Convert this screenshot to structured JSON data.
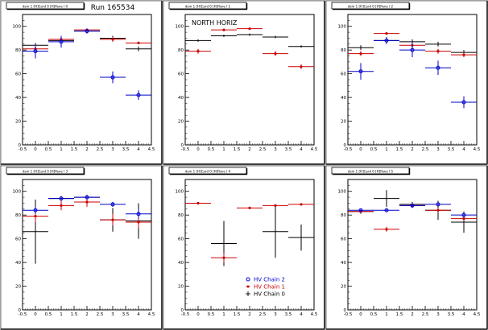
{
  "run_label": "Run 165534",
  "chart_data": [
    {
      "type": "scatter",
      "title": "dsm 1 [H]Card 0 [H]Pane l 0",
      "annotation": "",
      "xlim": [
        -0.5,
        4.5
      ],
      "ylim": [
        0,
        110
      ],
      "xticks": [
        "-0.5",
        "0",
        "0.5",
        "1",
        "1.5",
        "2",
        "2.5",
        "3",
        "3.5",
        "4",
        "4.5"
      ],
      "yticks": [
        "0",
        "20",
        "40",
        "60",
        "80",
        "100"
      ],
      "series": [
        {
          "color": "#000000",
          "marker": "cross",
          "x": [
            0,
            1,
            2,
            3,
            4
          ],
          "y": [
            84,
            88,
            96,
            90,
            81
          ],
          "yerr": [
            2,
            2,
            2,
            2,
            2
          ]
        },
        {
          "color": "#cc0000",
          "marker": "star",
          "x": [
            0,
            1,
            2,
            3,
            4
          ],
          "y": [
            81,
            89,
            97,
            89,
            86
          ],
          "yerr": [
            2,
            2,
            1,
            2,
            1
          ]
        },
        {
          "color": "#0000cc",
          "marker": "circle",
          "x": [
            0,
            1,
            2,
            3,
            4
          ],
          "y": [
            79,
            87,
            96,
            57,
            42
          ],
          "yerr": [
            6,
            5,
            2,
            5,
            4
          ]
        }
      ]
    },
    {
      "type": "scatter",
      "title": "dsm 1 [H]Card 0 [H]Pane l 1",
      "annotation": "NORTH HORIZ",
      "xlim": [
        -0.5,
        4.5
      ],
      "ylim": [
        0,
        110
      ],
      "xticks": [
        "-0.5",
        "0",
        "0.5",
        "1",
        "1.5",
        "2",
        "2.5",
        "3",
        "3.5",
        "4",
        "4.5"
      ],
      "yticks": [
        "0",
        "20",
        "40",
        "60",
        "80",
        "100"
      ],
      "series": [
        {
          "color": "#000000",
          "marker": "cross",
          "x": [
            0,
            1,
            2,
            3,
            4
          ],
          "y": [
            88,
            92,
            93,
            91,
            83
          ],
          "yerr": [
            1,
            1,
            1,
            1,
            1
          ]
        },
        {
          "color": "#cc0000",
          "marker": "star",
          "x": [
            0,
            1,
            2,
            3,
            4
          ],
          "y": [
            79,
            97,
            98,
            77,
            66
          ],
          "yerr": [
            2,
            1,
            1,
            2,
            2
          ]
        }
      ]
    },
    {
      "type": "scatter",
      "title": "dsm 1 [H]Card 0 [H]Pane l 2",
      "annotation": "",
      "xlim": [
        -0.5,
        4.5
      ],
      "ylim": [
        0,
        110
      ],
      "xticks": [
        "-0.5",
        "0",
        "0.5",
        "1",
        "1.5",
        "2",
        "2.5",
        "3",
        "3.5",
        "4",
        "4.5"
      ],
      "yticks": [
        "0",
        "20",
        "40",
        "60",
        "80",
        "100"
      ],
      "series": [
        {
          "color": "#000000",
          "marker": "cross",
          "x": [
            0,
            1,
            2,
            3,
            4
          ],
          "y": [
            82,
            88,
            87,
            85,
            78
          ],
          "yerr": [
            2,
            2,
            2,
            2,
            2
          ]
        },
        {
          "color": "#cc0000",
          "marker": "star",
          "x": [
            0,
            1,
            2,
            3,
            4
          ],
          "y": [
            77,
            94,
            84,
            79,
            76
          ],
          "yerr": [
            2,
            1,
            2,
            2,
            2
          ]
        },
        {
          "color": "#0000cc",
          "marker": "circle",
          "x": [
            0,
            1,
            2,
            3,
            4
          ],
          "y": [
            62,
            88,
            80,
            65,
            36
          ],
          "yerr": [
            7,
            3,
            6,
            6,
            5
          ]
        }
      ]
    },
    {
      "type": "scatter",
      "title": "dsm 1 [H]Card 0 [H]Pane l 3",
      "annotation": "",
      "xlim": [
        -0.5,
        4.5
      ],
      "ylim": [
        0,
        110
      ],
      "xticks": [
        "-0.5",
        "0",
        "0.5",
        "1",
        "1.5",
        "2",
        "2.5",
        "3",
        "3.5",
        "4",
        "4.5"
      ],
      "yticks": [
        "0",
        "20",
        "40",
        "60",
        "80",
        "100"
      ],
      "series": [
        {
          "color": "#000000",
          "marker": "cross",
          "x": [
            0,
            1,
            2,
            3,
            4
          ],
          "y": [
            66,
            94,
            95,
            76,
            75
          ],
          "yerr": [
            27,
            2,
            2,
            10,
            15
          ]
        },
        {
          "color": "#cc0000",
          "marker": "star",
          "x": [
            0,
            1,
            2,
            3,
            4
          ],
          "y": [
            79,
            88,
            91,
            76,
            74
          ],
          "yerr": [
            5,
            4,
            4,
            5,
            5
          ]
        },
        {
          "color": "#0000cc",
          "marker": "circle",
          "x": [
            0,
            1,
            2,
            3,
            4
          ],
          "y": [
            84,
            94,
            95,
            89,
            81
          ],
          "yerr": [
            3,
            2,
            2,
            2,
            4
          ]
        }
      ]
    },
    {
      "type": "scatter",
      "title": "dsm 1 [H]Card 0 [H]Pane l 4",
      "annotation": "",
      "xlim": [
        -0.5,
        4.5
      ],
      "ylim": [
        0,
        110
      ],
      "xticks": [
        "-0.5",
        "0",
        "0.5",
        "1",
        "1.5",
        "2",
        "2.5",
        "3",
        "3.5",
        "4",
        "4.5"
      ],
      "yticks": [
        "0",
        "20",
        "40",
        "60",
        "80",
        "100"
      ],
      "series": [
        {
          "color": "#000000",
          "marker": "cross",
          "x": [
            1,
            3,
            4
          ],
          "y": [
            56,
            66,
            61
          ],
          "yerr": [
            19,
            22,
            11
          ]
        },
        {
          "color": "#cc0000",
          "marker": "star",
          "x": [
            0,
            1,
            2,
            3,
            4
          ],
          "y": [
            90,
            44,
            86,
            88,
            89
          ],
          "yerr": [
            1,
            4,
            1,
            1,
            1
          ]
        }
      ],
      "legend": {
        "position": "bottom-right",
        "entries": [
          {
            "label": "HV Chain 2",
            "color": "#0000cc",
            "marker": "circle"
          },
          {
            "label": "HV Chain 1",
            "color": "#cc0000",
            "marker": "star"
          },
          {
            "label": "HV Chain 0",
            "color": "#000000",
            "marker": "cross"
          }
        ]
      }
    },
    {
      "type": "scatter",
      "title": "dsm 1 [H]Card 0 [H]Pane l 5",
      "annotation": "",
      "xlim": [
        -0.5,
        4.5
      ],
      "ylim": [
        0,
        110
      ],
      "xticks": [
        "-0.5",
        "0",
        "0.5",
        "1",
        "1.5",
        "2",
        "2.5",
        "3",
        "3.5",
        "4",
        "4.5"
      ],
      "yticks": [
        "0",
        "20",
        "40",
        "60",
        "80",
        "100"
      ],
      "series": [
        {
          "color": "#000000",
          "marker": "cross",
          "x": [
            0,
            1,
            2,
            3,
            4
          ],
          "y": [
            83,
            94,
            89,
            84,
            74
          ],
          "yerr": [
            2,
            7,
            2,
            8,
            9
          ]
        },
        {
          "color": "#cc0000",
          "marker": "star",
          "x": [
            0,
            1,
            2,
            3,
            4
          ],
          "y": [
            83,
            68,
            88,
            84,
            77
          ],
          "yerr": [
            2,
            2,
            2,
            2,
            2
          ]
        },
        {
          "color": "#0000cc",
          "marker": "circle",
          "x": [
            0,
            1,
            2,
            3,
            4
          ],
          "y": [
            84,
            84,
            88,
            89,
            80
          ],
          "yerr": [
            1,
            1,
            1,
            1,
            2
          ]
        }
      ]
    }
  ]
}
